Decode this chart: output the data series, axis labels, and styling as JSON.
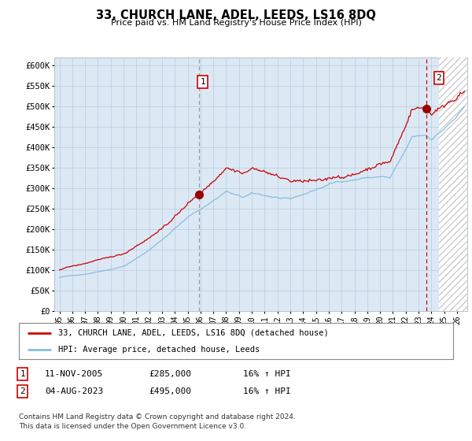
{
  "title": "33, CHURCH LANE, ADEL, LEEDS, LS16 8DQ",
  "subtitle": "Price paid vs. HM Land Registry's House Price Index (HPI)",
  "background_color": "#dce9f5",
  "hpi_line_color": "#8bbcdc",
  "price_line_color": "#cc0000",
  "ylim": [
    0,
    620000
  ],
  "yticks": [
    0,
    50000,
    100000,
    150000,
    200000,
    250000,
    300000,
    350000,
    400000,
    450000,
    500000,
    550000,
    600000
  ],
  "ytick_labels": [
    "£0",
    "£50K",
    "£100K",
    "£150K",
    "£200K",
    "£250K",
    "£300K",
    "£350K",
    "£400K",
    "£450K",
    "£500K",
    "£550K",
    "£600K"
  ],
  "xlim_start": 1994.6,
  "xlim_end": 2026.8,
  "xtick_years": [
    1995,
    1996,
    1997,
    1998,
    1999,
    2000,
    2001,
    2002,
    2003,
    2004,
    2005,
    2006,
    2007,
    2008,
    2009,
    2010,
    2011,
    2012,
    2013,
    2014,
    2015,
    2016,
    2017,
    2018,
    2019,
    2020,
    2021,
    2022,
    2023,
    2024,
    2025,
    2026
  ],
  "sale1_x": 2005.87,
  "sale1_y": 285000,
  "sale1_label": "1",
  "sale2_x": 2023.59,
  "sale2_y": 495000,
  "sale2_label": "2",
  "legend_line1": "33, CHURCH LANE, ADEL, LEEDS, LS16 8DQ (detached house)",
  "legend_line2": "HPI: Average price, detached house, Leeds",
  "table_row1": [
    "1",
    "11-NOV-2005",
    "£285,000",
    "16% ↑ HPI"
  ],
  "table_row2": [
    "2",
    "04-AUG-2023",
    "£495,000",
    "16% ↑ HPI"
  ],
  "footnote": "Contains HM Land Registry data © Crown copyright and database right 2024.\nThis data is licensed under the Open Government Licence v3.0.",
  "hatching_start": 2024.58,
  "grid_color": "#b0c4d8"
}
